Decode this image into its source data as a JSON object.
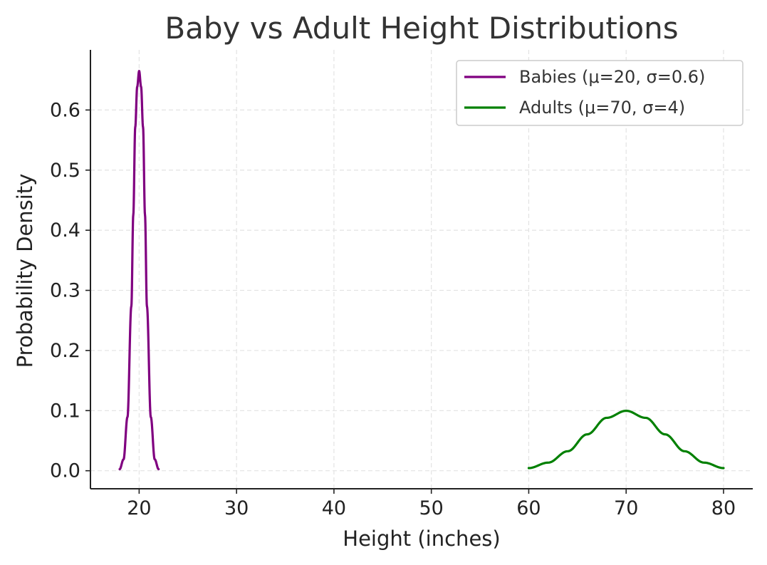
{
  "chart_data": {
    "type": "line",
    "title": "Baby vs Adult Height Distributions",
    "xlabel": "Height (inches)",
    "ylabel": "Probability Density",
    "xlim": [
      15,
      83
    ],
    "ylim": [
      -0.03,
      0.7
    ],
    "xticks": [
      20,
      30,
      40,
      50,
      60,
      70,
      80
    ],
    "yticks": [
      0.0,
      0.1,
      0.2,
      0.3,
      0.4,
      0.5,
      0.6
    ],
    "grid": true,
    "legend_position": "top-right",
    "series": [
      {
        "name": "Babies (μ=20, σ=0.6)",
        "color": "#800080",
        "x_range": [
          18,
          22
        ],
        "x": [
          18.0,
          18.4,
          18.8,
          19.2,
          19.4,
          19.6,
          19.8,
          20.0,
          20.2,
          20.4,
          20.6,
          20.8,
          21.2,
          21.6,
          22.0
        ],
        "y": [
          0.0026,
          0.0189,
          0.0892,
          0.2735,
          0.4258,
          0.5716,
          0.6386,
          0.6649,
          0.6386,
          0.5716,
          0.4258,
          0.2735,
          0.0892,
          0.0189,
          0.0026
        ]
      },
      {
        "name": "Adults (μ=70, σ=4)",
        "color": "#008000",
        "x_range": [
          60,
          80
        ],
        "x": [
          60,
          62,
          64,
          66,
          68,
          70,
          72,
          74,
          76,
          78,
          80
        ],
        "y": [
          0.0044,
          0.0135,
          0.0324,
          0.0605,
          0.088,
          0.0997,
          0.088,
          0.0605,
          0.0324,
          0.0135,
          0.0044
        ]
      }
    ]
  }
}
